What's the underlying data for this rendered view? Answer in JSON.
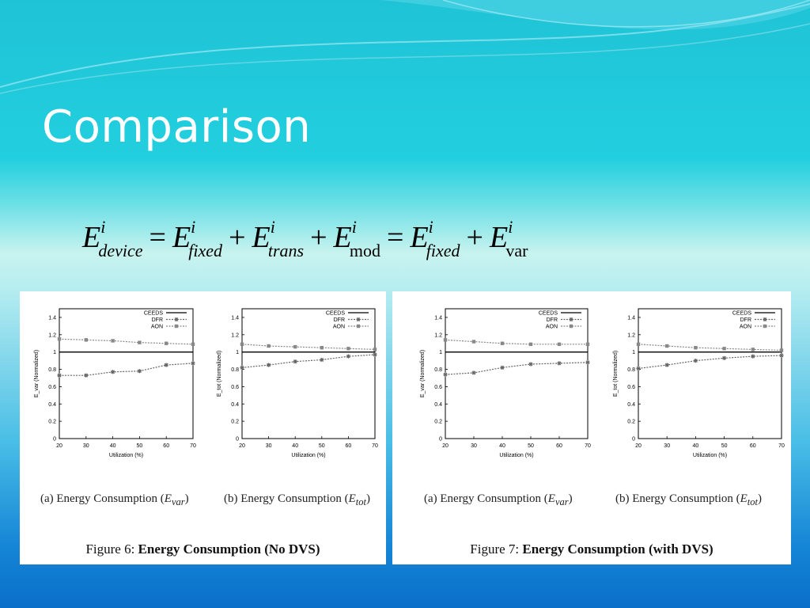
{
  "slide": {
    "title": "Comparison",
    "formula": {
      "t1": "E",
      "t1_sup": "i",
      "t1_sub": "device",
      "t2": "E",
      "t2_sup": "i",
      "t2_sub": "fixed",
      "t3": "E",
      "t3_sup": "i",
      "t3_sub": "trans",
      "t4": "E",
      "t4_sup": "i",
      "t4_sub": "mod",
      "t5": "E",
      "t5_sup": "i",
      "t5_sub": "fixed",
      "t6": "E",
      "t6_sup": "i",
      "t6_sub": "var",
      "eq": "=",
      "plus": "+"
    }
  },
  "figures": [
    {
      "caption_prefix": "Figure 6: ",
      "caption_bold": "Energy Consumption (No DVS)",
      "subcaptions": [
        {
          "prefix": "(a) Energy Consumption (",
          "var": "E",
          "sub": "var",
          "suffix": ")"
        },
        {
          "prefix": "(b) Energy Consumption (",
          "var": "E",
          "sub": "tot",
          "suffix": ")"
        }
      ]
    },
    {
      "caption_prefix": "Figure 7: ",
      "caption_bold": "Energy Consumption (with DVS)",
      "subcaptions": [
        {
          "prefix": "(a) Energy Consumption (",
          "var": "E",
          "sub": "var",
          "suffix": ")"
        },
        {
          "prefix": "(b) Energy Consumption (",
          "var": "E",
          "sub": "tot",
          "suffix": ")"
        }
      ]
    }
  ],
  "chart_data": [
    {
      "type": "line",
      "figure": "Figure 6",
      "panel": "(a)",
      "xlabel": "Utilization (%)",
      "ylabel": "E_var (Normalized)",
      "x": [
        20,
        30,
        40,
        50,
        60,
        70
      ],
      "xlim": [
        20,
        70
      ],
      "ylim": [
        0,
        1.5
      ],
      "yticks": [
        "0",
        "0.2",
        "0.4",
        "0.6",
        "0.8",
        "1",
        "1.2",
        "1.4"
      ],
      "legend_position": "top-right",
      "series": [
        {
          "name": "CEEDS",
          "values": [
            1,
            1,
            1,
            1,
            1,
            1
          ]
        },
        {
          "name": "DFR",
          "values": [
            0.73,
            0.73,
            0.77,
            0.78,
            0.85,
            0.87
          ]
        },
        {
          "name": "AON",
          "values": [
            1.15,
            1.14,
            1.13,
            1.11,
            1.1,
            1.09
          ]
        }
      ]
    },
    {
      "type": "line",
      "figure": "Figure 6",
      "panel": "(b)",
      "xlabel": "Utilization (%)",
      "ylabel": "E_tot (Normalized)",
      "x": [
        20,
        30,
        40,
        50,
        60,
        70
      ],
      "xlim": [
        20,
        70
      ],
      "ylim": [
        0,
        1.5
      ],
      "yticks": [
        "0",
        "0.2",
        "0.4",
        "0.6",
        "0.8",
        "1",
        "1.2",
        "1.4"
      ],
      "legend_position": "top-right",
      "series": [
        {
          "name": "CEEDS",
          "values": [
            1,
            1,
            1,
            1,
            1,
            1
          ]
        },
        {
          "name": "DFR",
          "values": [
            0.82,
            0.85,
            0.89,
            0.91,
            0.95,
            0.97
          ]
        },
        {
          "name": "AON",
          "values": [
            1.09,
            1.07,
            1.06,
            1.05,
            1.04,
            1.03
          ]
        }
      ]
    },
    {
      "type": "line",
      "figure": "Figure 7",
      "panel": "(a)",
      "xlabel": "Utilization (%)",
      "ylabel": "E_var (Normalized)",
      "x": [
        20,
        30,
        40,
        50,
        60,
        70
      ],
      "xlim": [
        20,
        70
      ],
      "ylim": [
        0,
        1.5
      ],
      "yticks": [
        "0",
        "0.2",
        "0.4",
        "0.6",
        "0.8",
        "1",
        "1.2",
        "1.4"
      ],
      "legend_position": "top-right",
      "series": [
        {
          "name": "CEEDS",
          "values": [
            1,
            1,
            1,
            1,
            1,
            1
          ]
        },
        {
          "name": "DFR",
          "values": [
            0.74,
            0.76,
            0.82,
            0.86,
            0.87,
            0.88
          ]
        },
        {
          "name": "AON",
          "values": [
            1.14,
            1.12,
            1.1,
            1.09,
            1.09,
            1.09
          ]
        }
      ]
    },
    {
      "type": "line",
      "figure": "Figure 7",
      "panel": "(b)",
      "xlabel": "Utilization (%)",
      "ylabel": "E_tot (Normalized)",
      "x": [
        20,
        30,
        40,
        50,
        60,
        70
      ],
      "xlim": [
        20,
        70
      ],
      "ylim": [
        0,
        1.5
      ],
      "yticks": [
        "0",
        "0.2",
        "0.4",
        "0.6",
        "0.8",
        "1",
        "1.2",
        "1.4"
      ],
      "legend_position": "top-right",
      "series": [
        {
          "name": "CEEDS",
          "values": [
            1,
            1,
            1,
            1,
            1,
            1
          ]
        },
        {
          "name": "DFR",
          "values": [
            0.81,
            0.85,
            0.9,
            0.93,
            0.95,
            0.96
          ]
        },
        {
          "name": "AON",
          "values": [
            1.09,
            1.07,
            1.05,
            1.04,
            1.03,
            1.02
          ]
        }
      ]
    }
  ]
}
